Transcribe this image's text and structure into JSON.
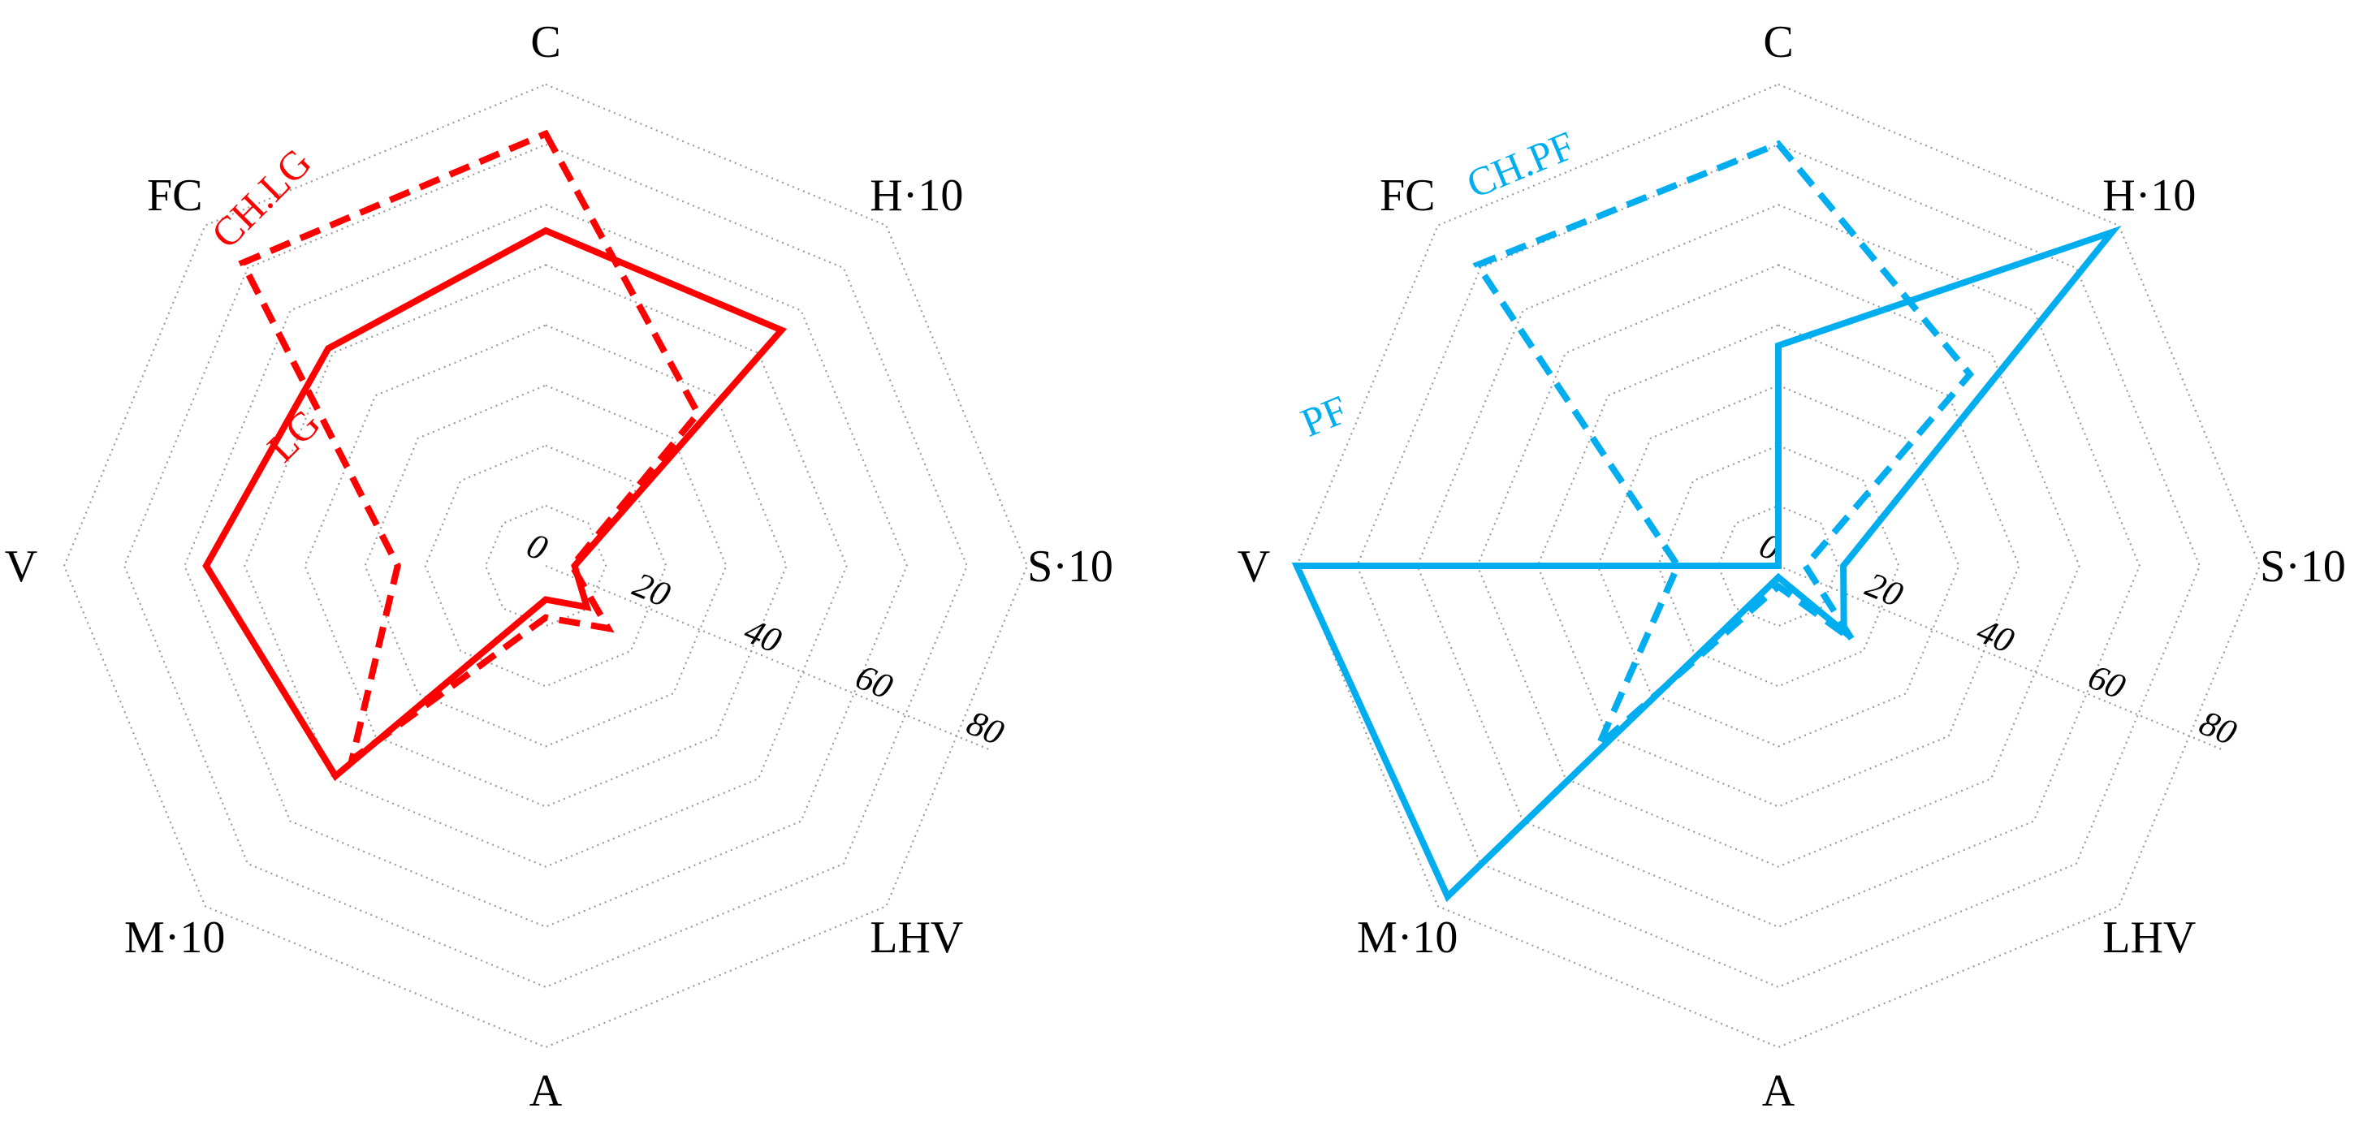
{
  "colors": {
    "lg": "#ff0000",
    "pf": "#00aeef",
    "grid": "#9a9a9a",
    "text": "#000000"
  },
  "chart_data": [
    {
      "type": "radar",
      "axes": [
        "C",
        "H·10",
        "S·10",
        "LHV",
        "A",
        "M·10",
        "V",
        "FC"
      ],
      "rlim": [
        0,
        80
      ],
      "rings": [
        10,
        20,
        30,
        40,
        50,
        60,
        70,
        80
      ],
      "tick_labels": [
        "0",
        "20",
        "40",
        "60",
        "80"
      ],
      "tick_values": [
        0,
        20,
        40,
        60,
        80
      ],
      "grid": true,
      "series": [
        {
          "name": "LG",
          "style": "solid",
          "color": "#ff0000",
          "values": [
            55.7,
            55.4,
            4.8,
            9.7,
            5.6,
            49.4,
            56.4,
            51.1
          ]
        },
        {
          "name": "CH.LG",
          "style": "dashed",
          "color": "#ff0000",
          "values": [
            71.8,
            35.8,
            4.4,
            14.7,
            8.6,
            45.5,
            24.6,
            71.2
          ]
        }
      ]
    },
    {
      "type": "radar",
      "axes": [
        "C",
        "H·10",
        "S·10",
        "LHV",
        "A",
        "M·10",
        "V",
        "FC"
      ],
      "rlim": [
        0,
        80
      ],
      "rings": [
        10,
        20,
        30,
        40,
        50,
        60,
        70,
        80
      ],
      "tick_labels": [
        "0",
        "20",
        "40",
        "60",
        "80"
      ],
      "tick_values": [
        0,
        20,
        40,
        60,
        80
      ],
      "grid": true,
      "series": [
        {
          "name": "PF",
          "style": "solid",
          "color": "#00aeef",
          "values": [
            36.6,
            78.4,
            10.8,
            15.4,
            1.9,
            77.7,
            80.0,
            0.0
          ]
        },
        {
          "name": "CH.PF",
          "style": "dashed",
          "color": "#00aeef",
          "values": [
            70.1,
            45.0,
            4.5,
            17.3,
            3.4,
            42.2,
            16.7,
            70.7
          ]
        }
      ]
    }
  ]
}
